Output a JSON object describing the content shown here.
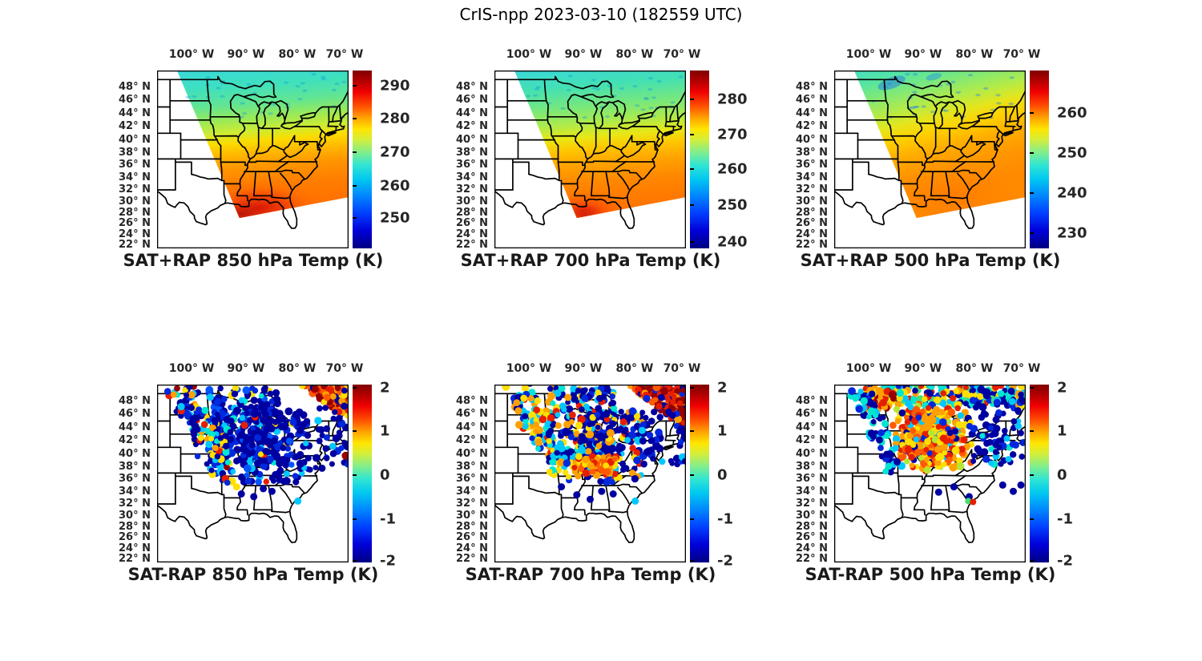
{
  "figure_title": "CrIS-npp 2023-03-10 (182559 UTC)",
  "colors": {
    "background": "#ffffff",
    "map_lines": "#000000",
    "colormap": "jet",
    "jet_stops": [
      "#7f0000",
      "#f00000",
      "#ff5000",
      "#ffa800",
      "#ffe600",
      "#82ee8c",
      "#32e6d2",
      "#00c8f0",
      "#0082ff",
      "#0000d8",
      "#000082"
    ]
  },
  "axes": {
    "x_ticks": [
      "100° W",
      "90° W",
      "80° W",
      "70° W"
    ],
    "y_ticks": [
      "48° N",
      "46° N",
      "44° N",
      "42° N",
      "40° N",
      "38° N",
      "36° N",
      "34° N",
      "32° N",
      "30° N",
      "28° N",
      "26° N",
      "24° N",
      "22° N"
    ]
  },
  "panels": [
    {
      "title": "SAT+RAP 850 hPa Temp (K)",
      "colorbar_ticks": [
        "290",
        "280",
        "270",
        "260",
        "250"
      ]
    },
    {
      "title": "SAT+RAP 700 hPa Temp (K)",
      "colorbar_ticks": [
        "280",
        "270",
        "260",
        "250",
        "240"
      ]
    },
    {
      "title": "SAT+RAP 500 hPa Temp (K)",
      "colorbar_ticks": [
        "260",
        "250",
        "240",
        "230"
      ]
    },
    {
      "title": "SAT-RAP 850 hPa Temp (K)",
      "colorbar_ticks": [
        "2",
        "1",
        "0",
        "-1",
        "-2"
      ]
    },
    {
      "title": "SAT-RAP 700 hPa Temp (K)",
      "colorbar_ticks": [
        "2",
        "1",
        "0",
        "-1",
        "-2"
      ]
    },
    {
      "title": "SAT-RAP 500 hPa Temp (K)",
      "colorbar_ticks": [
        "2",
        "1",
        "0",
        "-1",
        "-2"
      ]
    }
  ],
  "chart_data": [
    {
      "id": "sat_plus_rap_850_temp",
      "type": "heatmap",
      "title": "SAT+RAP 850 hPa Temp (K)",
      "units": "K",
      "colormap": "jet",
      "x_ticks_lon_west": [
        100,
        90,
        80,
        70
      ],
      "y_ticks_lat_north": [
        48,
        46,
        44,
        42,
        40,
        38,
        36,
        34,
        32,
        30,
        28,
        26,
        24,
        22
      ],
      "map_extent_approx": {
        "lon": [
          -106.5,
          -69
        ],
        "lat": [
          21,
          50
        ]
      },
      "colorbar_ticks": [
        290,
        280,
        270,
        260,
        250
      ],
      "colorbar_range_approx": [
        242,
        294
      ],
      "field_summary": "Satellite swath NE of a diagonal edge (~103W,50N to ~91W,27N): ~263-268 K (cyan) over the Great Lakes and north, warming southward through ~272 K (yellow) to 288-292 K (red) along the Gulf Coast; white = no data SW of the swath edge"
    },
    {
      "id": "sat_plus_rap_700_temp",
      "type": "heatmap",
      "title": "SAT+RAP 700 hPa Temp (K)",
      "units": "K",
      "colormap": "jet",
      "x_ticks_lon_west": [
        100,
        90,
        80,
        70
      ],
      "y_ticks_lat_north": [
        48,
        46,
        44,
        42,
        40,
        38,
        36,
        34,
        32,
        30,
        28,
        26,
        24,
        22
      ],
      "map_extent_approx": {
        "lon": [
          -106.5,
          -69
        ],
        "lat": [
          21,
          50
        ]
      },
      "colorbar_ticks": [
        280,
        270,
        260,
        250,
        240
      ],
      "colorbar_range_approx": [
        238,
        288
      ],
      "field_summary": "Same swath: ~256-262 K (cyan) in the north to ~278-283 K (orange, red at the SW tip near Louisiana) along the Gulf Coast"
    },
    {
      "id": "sat_plus_rap_500_temp",
      "type": "heatmap",
      "title": "SAT+RAP 500 hPa Temp (K)",
      "units": "K",
      "colormap": "jet",
      "x_ticks_lon_west": [
        100,
        90,
        80,
        70
      ],
      "y_ticks_lat_north": [
        48,
        46,
        44,
        42,
        40,
        38,
        36,
        34,
        32,
        30,
        28,
        26,
        24,
        22
      ],
      "map_extent_approx": {
        "lon": [
          -106.5,
          -69
        ],
        "lat": [
          21,
          50
        ]
      },
      "colorbar_ticks": [
        260,
        250,
        240,
        230
      ],
      "colorbar_range_approx": [
        226,
        271
      ],
      "field_summary": "Same swath: ~243-248 K (teal/green) in the north, SW-NE tilted yellow band ~252 K, ~258-263 K (orange maximum) over the Southeast"
    },
    {
      "id": "sat_minus_rap_850_temp_diff",
      "type": "scatter",
      "title": "SAT-RAP 850 hPa Temp (K)",
      "units": "K",
      "colormap": "jet",
      "x_ticks_lon_west": [
        100,
        90,
        80,
        70
      ],
      "y_ticks_lat_north": [
        48,
        46,
        44,
        42,
        40,
        38,
        36,
        34,
        32,
        30,
        28,
        26,
        24,
        22
      ],
      "colorbar_ticks": [
        2,
        1,
        0,
        -1,
        -2
      ],
      "colorbar_range": [
        -2,
        2
      ],
      "points_summary": "Dense cloud of retrieval-minus-model differences over the Midwest/Great Lakes, mostly -1.5 to -2 K (dark blue); +1 to +2 K (orange/red) cluster over the far NE corner and mixed warm/cool points along the NW swath edge; isolated outliers south to ~32N"
    },
    {
      "id": "sat_minus_rap_700_temp_diff",
      "type": "scatter",
      "title": "SAT-RAP 700 hPa Temp (K)",
      "units": "K",
      "colormap": "jet",
      "x_ticks_lon_west": [
        100,
        90,
        80,
        70
      ],
      "y_ticks_lat_north": [
        48,
        46,
        44,
        42,
        40,
        38,
        36,
        34,
        32,
        30,
        28,
        26,
        24,
        22
      ],
      "colorbar_ticks": [
        2,
        1,
        0,
        -1,
        -2
      ],
      "colorbar_range": [
        -2,
        2
      ],
      "points_summary": "Blue (-2..0 K) cloud with cyan/yellow (0..+1 K) streaks over Wisconsin-Illinois, a +1..+2 K orange/red patch near Kentucky/Tennessee, and a strong +2 K red cluster in the far NE corner"
    },
    {
      "id": "sat_minus_rap_500_temp_diff",
      "type": "scatter",
      "title": "SAT-RAP 500 hPa Temp (K)",
      "units": "K",
      "colormap": "jet",
      "x_ticks_lon_west": [
        100,
        90,
        80,
        70
      ],
      "y_ticks_lat_north": [
        48,
        46,
        44,
        42,
        40,
        38,
        36,
        34,
        32,
        30,
        28,
        26,
        24,
        22
      ],
      "colorbar_ticks": [
        2,
        1,
        0,
        -1,
        -2
      ],
      "colorbar_range": [
        -2,
        2
      ],
      "points_summary": "Widespread +0.5..+2 K (orange/red) differences over the central Midwest and Ohio Valley, ringed by -1..-2 K (blue) points; mixed cyan/yellow band along the northern swath edge; scattered blue outliers SE to ~31N"
    }
  ]
}
